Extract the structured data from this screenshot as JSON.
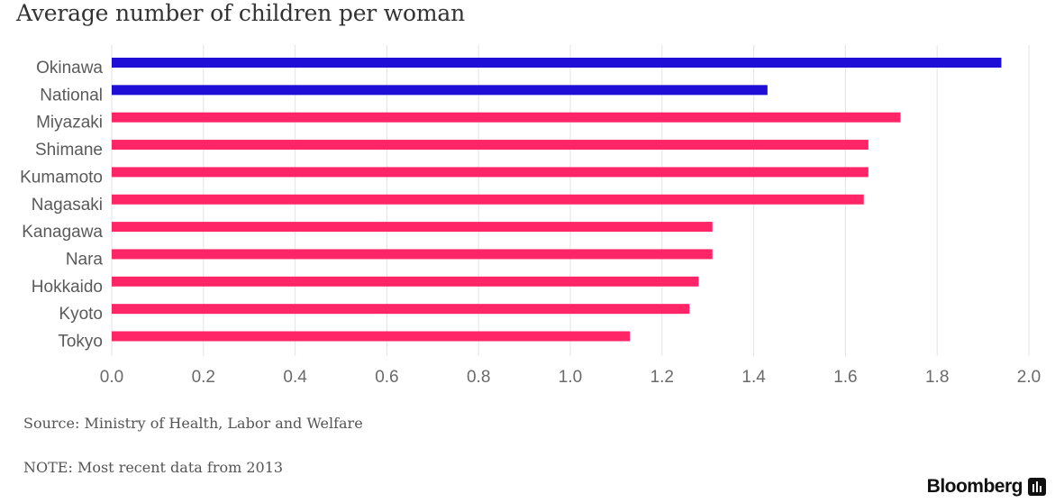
{
  "title": "Average number of children per woman",
  "source": "Source: Ministry of Health, Labor and Welfare",
  "note": "NOTE: Most recent data from 2013",
  "brand": "Bloomberg",
  "colors": {
    "highlight": "#1f0fd6",
    "primary": "#ff2567",
    "grid": "#e3e3e3"
  },
  "chart_data": {
    "type": "bar",
    "orientation": "horizontal",
    "title": "Average number of children per woman",
    "categories": [
      "Okinawa",
      "National",
      "Miyazaki",
      "Shimane",
      "Kumamoto",
      "Nagasaki",
      "Kanagawa",
      "Nara",
      "Hokkaido",
      "Kyoto",
      "Tokyo"
    ],
    "values": [
      1.94,
      1.43,
      1.72,
      1.65,
      1.65,
      1.64,
      1.31,
      1.31,
      1.28,
      1.26,
      1.13
    ],
    "highlighted": [
      "Okinawa",
      "National"
    ],
    "xlim": [
      0,
      2.0
    ],
    "xticks": [
      "0.0",
      "0.2",
      "0.4",
      "0.6",
      "0.8",
      "1.0",
      "1.2",
      "1.4",
      "1.6",
      "1.8",
      "2.0"
    ],
    "xlabel": "",
    "ylabel": "",
    "grid": true
  }
}
